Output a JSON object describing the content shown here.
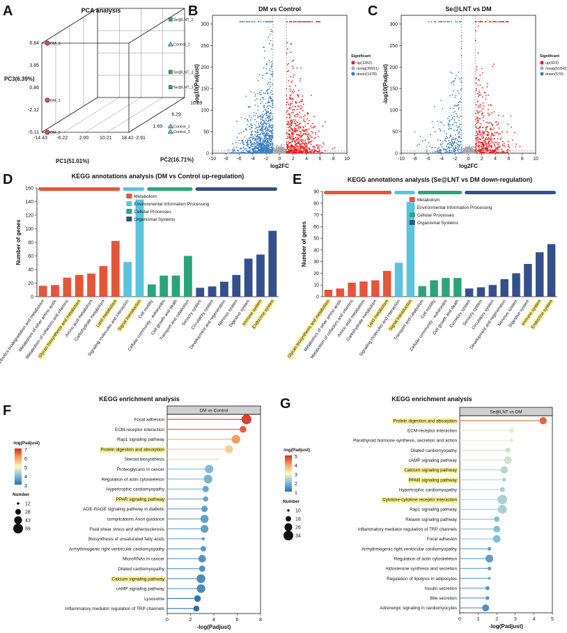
{
  "panel_letters": {
    "A": "A",
    "B": "B",
    "C": "C",
    "D": "D",
    "E": "E",
    "F": "F",
    "G": "G"
  },
  "chart_data": [
    {
      "type": "scatter",
      "panel": "A",
      "title": "PCA analysis",
      "xlabel": "PC1(51.01%)",
      "ylabel": "PC2(16.71%)",
      "zlabel": "PC3(6.39%)",
      "pc1_ticks": [
        "-14.43",
        "-6.22",
        "2.00",
        "10.21",
        "18.42"
      ],
      "pc2_ticks": [
        "-2.91",
        "1.69",
        "6.29",
        "10.89"
      ],
      "pc3_ticks": [
        "-5.11",
        "-2.12",
        "0.86",
        "3.85",
        "6.84"
      ],
      "pc1_range": [
        -14.43,
        18.42
      ],
      "pc2_range": [
        -2.91,
        10.89
      ],
      "pc3_range": [
        -5.11,
        6.84
      ],
      "points": [
        {
          "name": "DM_3",
          "group": "DM",
          "pc1": -14.4,
          "pc2": -2.9,
          "pc3": 6.84
        },
        {
          "name": "DM_1",
          "group": "DM",
          "pc1": -14.4,
          "pc2": -2.9,
          "pc3": -0.8
        },
        {
          "name": "DM_2",
          "group": "DM",
          "pc1": -14.4,
          "pc2": -2.9,
          "pc3": -5.11
        },
        {
          "name": "Se@LNT_2",
          "group": "Se@LNT",
          "pc1": 18.4,
          "pc2": -2.9,
          "pc3": 7.4
        },
        {
          "name": "Control_2",
          "group": "Control",
          "pc1": 18.4,
          "pc2": -2.9,
          "pc3": 4.6
        },
        {
          "name": "Se@LNT_3",
          "group": "Se@LNT",
          "pc1": 18.4,
          "pc2": -2.9,
          "pc3": 1.5
        },
        {
          "name": "Se@LNT_1",
          "group": "Se@LNT",
          "pc1": 18.4,
          "pc2": -2.9,
          "pc3": -0.2
        },
        {
          "name": "Control_1",
          "group": "Control",
          "pc1": 18.4,
          "pc2": -2.9,
          "pc3": -4.6
        },
        {
          "name": "Control_3",
          "group": "Control",
          "pc1": 18.4,
          "pc2": -2.9,
          "pc3": -5.2
        }
      ],
      "colors": {
        "DM": "#e74c3c",
        "Se@LNT": "#27ae60",
        "Control": "#4fc3d8"
      }
    },
    {
      "type": "scatter",
      "panel": "B",
      "title": "DM vs Control",
      "xlabel": "log2FC",
      "ylabel": "-log10(Padjust)",
      "xlim": [
        -10,
        10
      ],
      "ylim": [
        0,
        320
      ],
      "xticks": [
        -10,
        -8,
        -6,
        -4,
        -2,
        0,
        2,
        4,
        6,
        8,
        10
      ],
      "yticks": [
        0,
        50,
        100,
        150,
        200,
        250,
        300
      ],
      "legend_title": "Significant",
      "legend": [
        {
          "label": "up(1352)",
          "color": "#e41a1c"
        },
        {
          "label": "nosig(39911)",
          "color": "#a8a8a8"
        },
        {
          "label": "down(1978)",
          "color": "#3a7fc2"
        }
      ],
      "up": 1352,
      "nosig": 39911,
      "down": 1978,
      "fc_threshold": 1
    },
    {
      "type": "scatter",
      "panel": "C",
      "title": "Se@LNT vs DM",
      "xlabel": "log2FC",
      "ylabel": "-log10(Padjust)",
      "xlim": [
        -10,
        10
      ],
      "ylim": [
        0,
        320
      ],
      "xticks": [
        -10,
        -8,
        -6,
        -4,
        -2,
        0,
        2,
        4,
        6,
        8,
        10
      ],
      "yticks": [
        0,
        50,
        100,
        150,
        200,
        250,
        300
      ],
      "legend_title": "Significant",
      "legend": [
        {
          "label": "up(923)",
          "color": "#e41a1c"
        },
        {
          "label": "nosig(61842)",
          "color": "#a8a8a8"
        },
        {
          "label": "down(576)",
          "color": "#3a7fc2"
        }
      ],
      "up": 923,
      "nosig": 61842,
      "down": 576,
      "fc_threshold": 1
    },
    {
      "type": "bar",
      "panel": "D",
      "title": "KEGG annotations analysis (DM vs Control up-regulation)",
      "ylabel": "Number of genes",
      "ylim": [
        0,
        160
      ],
      "yticks": [
        0,
        20,
        40,
        60,
        80,
        100,
        120,
        140,
        160
      ],
      "legend": [
        "Metabolism",
        "Environmental Information Processing",
        "Cellular Processes",
        "Organismal Systems"
      ],
      "class_colors": [
        "#e6553a",
        "#5bc4dc",
        "#2aa57a",
        "#34508a"
      ],
      "categories": [
        "Xenobiotics biodegradation and metabolism",
        "Metabolism of other amino acids",
        "Metabolism of cofactors and vitamins",
        "Glycan biosynthesis and metabolism",
        "Amino acid metabolism",
        "Carbohydrate metabolism",
        "Lipid metabolism",
        "Signaling molecules and interaction",
        "Signal transduction",
        "Cell motility",
        "Cellular community - eukaryotes",
        "Cell growth and death",
        "Transport and catabolism",
        "Sensory system",
        "Circulatory system",
        "Development and regeneration",
        "Nervous system",
        "Digestive system",
        "Immune system",
        "Endocrine system"
      ],
      "values": [
        16,
        17,
        28,
        32,
        34,
        45,
        82,
        51,
        143,
        18,
        31,
        31,
        60,
        13,
        15,
        22,
        32,
        56,
        62,
        97
      ],
      "classes": [
        0,
        0,
        0,
        0,
        0,
        0,
        0,
        1,
        1,
        2,
        2,
        2,
        2,
        3,
        3,
        3,
        3,
        3,
        3,
        3
      ],
      "highlighted": [
        3,
        6,
        8,
        18,
        19
      ]
    },
    {
      "type": "bar",
      "panel": "E",
      "title": "KEGG annotations analysis (Se@LNT vs DM down-regulation)",
      "ylabel": "Number of genes",
      "ylim": [
        0,
        90
      ],
      "yticks": [
        0,
        10,
        20,
        30,
        40,
        50,
        60,
        70,
        80,
        90
      ],
      "legend": [
        "Metabolism",
        "Environmental Information Processing",
        "Cellular Processes",
        "Organismal Systems"
      ],
      "class_colors": [
        "#e6553a",
        "#5bc4dc",
        "#2aa57a",
        "#34508a"
      ],
      "categories": [
        "Glycan biosynthesis and metabolism",
        "Metabolism of other amino acids",
        "Metabolism of cofactors and vitamins",
        "Amino acid metabolism",
        "Carbohydrate metabolism",
        "Lipid metabolism",
        "Signaling molecules and interaction",
        "Signal transduction",
        "Transport and catabolism",
        "Cell motility",
        "Cellular community - eukaryotes",
        "Cell growth and death",
        "Excretory system",
        "Sensory system",
        "Circulatory system",
        "Development and regeneration",
        "Nervous system",
        "Digestive system",
        "Immune system",
        "Endocrine system"
      ],
      "values": [
        6,
        7,
        12,
        13,
        14,
        22,
        29,
        81,
        9,
        14,
        16,
        16,
        7,
        8,
        10,
        15,
        20,
        28,
        38,
        45
      ],
      "classes": [
        0,
        0,
        0,
        0,
        0,
        0,
        1,
        1,
        2,
        2,
        2,
        2,
        3,
        3,
        3,
        3,
        3,
        3,
        3,
        3
      ],
      "highlighted": [
        0,
        5,
        7,
        18,
        19
      ]
    },
    {
      "type": "scatter",
      "panel": "F",
      "title": "KEGG enrichment analysis",
      "facet": "DM vs Control",
      "xlabel": "-log(Padjust)",
      "xlim": [
        0,
        8
      ],
      "xticks": [
        0,
        2,
        4,
        6,
        8
      ],
      "color_label": "-log(Padjust)",
      "color_ticks": [
        "7",
        "6",
        "5",
        "4",
        "3"
      ],
      "color_range": [
        2.5,
        7
      ],
      "size_label": "Number",
      "size_legend": [
        "12",
        "28",
        "43",
        "59"
      ],
      "size_values": [
        12,
        28,
        43,
        59
      ],
      "terms": [
        "Focal adhesion",
        "ECM-receptor interaction",
        "Rap1 signaling pathway",
        "Protein digestion and absorption",
        "Steroid biosynthesis",
        "Proteoglycans in cancer",
        "Regulation of actin cytoskeleton",
        "Hypertrophic cardiomyopathy",
        "PPAR signaling pathway",
        "AGE-RAGE signaling pathway in diabetic",
        "complications Axon guidance",
        "Fluid shear stress and atherosclerosis",
        "Biosynthesis of unsaturated fatty acids",
        "Arrhythmogenic right ventricular cardiomyopathy",
        "MicroRNAs in cancer",
        "Dilated cardiomyopathy",
        "Calcium signaling pathway",
        "cAMP signaling pathway",
        "Lysosome",
        "Inflammatory mediator regulation of TRP channels"
      ],
      "values": [
        6.8,
        6.5,
        5.9,
        5.3,
        4.3,
        3.6,
        3.5,
        3.3,
        3.3,
        3.2,
        3.2,
        3.2,
        3.1,
        3.1,
        3.0,
        3.0,
        2.9,
        2.9,
        2.6,
        2.5
      ],
      "counts": [
        59,
        35,
        49,
        43,
        10,
        47,
        50,
        32,
        26,
        33,
        45,
        43,
        14,
        27,
        40,
        32,
        50,
        49,
        35,
        30
      ],
      "highlighted": [
        3,
        8,
        16
      ]
    },
    {
      "type": "scatter",
      "panel": "G",
      "title": "KEGG enrichment analysis",
      "facet": "Se@LNT vs DM",
      "xlabel": "-log(Padjust)",
      "xlim": [
        0,
        5
      ],
      "xticks": [
        0,
        1,
        2,
        3,
        4,
        5
      ],
      "color_label": "-log(Padjust)",
      "color_ticks": [
        "5",
        "4",
        "3",
        "2",
        "1"
      ],
      "color_range": [
        1,
        5
      ],
      "size_label": "Number",
      "size_legend": [
        "10",
        "18",
        "26",
        "34"
      ],
      "size_values": [
        10,
        18,
        26,
        34
      ],
      "terms": [
        "Protein digestion and absorption",
        "ECM-receptor interaction",
        "Parathyroid hormone synthesis, secretion and action",
        "Dilated cardiomyopathy",
        "cAMP signaling pathway",
        "Calcium signaling pathway",
        "PPAR signaling pathway",
        "Hypertrophic cardiomyopathy",
        "Cytokine-cytokine receptor interaction",
        "Rap1 signaling pathway",
        "Relaxin signaling pathway",
        "Inflammatory mediator regulation of TRP channels",
        "Focal adhesion",
        "Arrhythmogenic right ventricular cardiomyopathy",
        "Regulation of actin cytoskeleton",
        "Aldosterone synthesis and secretion",
        "Regulation of lipolysis in adipocytes",
        "Insulin secretion",
        "Bile secretion",
        "Adrenergic signaling in cardiomyocytes"
      ],
      "values": [
        4.5,
        2.8,
        2.8,
        2.6,
        2.6,
        2.4,
        2.4,
        2.3,
        2.3,
        2.3,
        2.0,
        2.0,
        2.0,
        1.6,
        1.6,
        1.6,
        1.6,
        1.5,
        1.5,
        1.4
      ],
      "counts": [
        24,
        17,
        13,
        17,
        26,
        24,
        14,
        17,
        33,
        30,
        18,
        22,
        25,
        13,
        26,
        13,
        10,
        14,
        13,
        23
      ],
      "highlighted": [
        0,
        5,
        6,
        8
      ]
    }
  ]
}
